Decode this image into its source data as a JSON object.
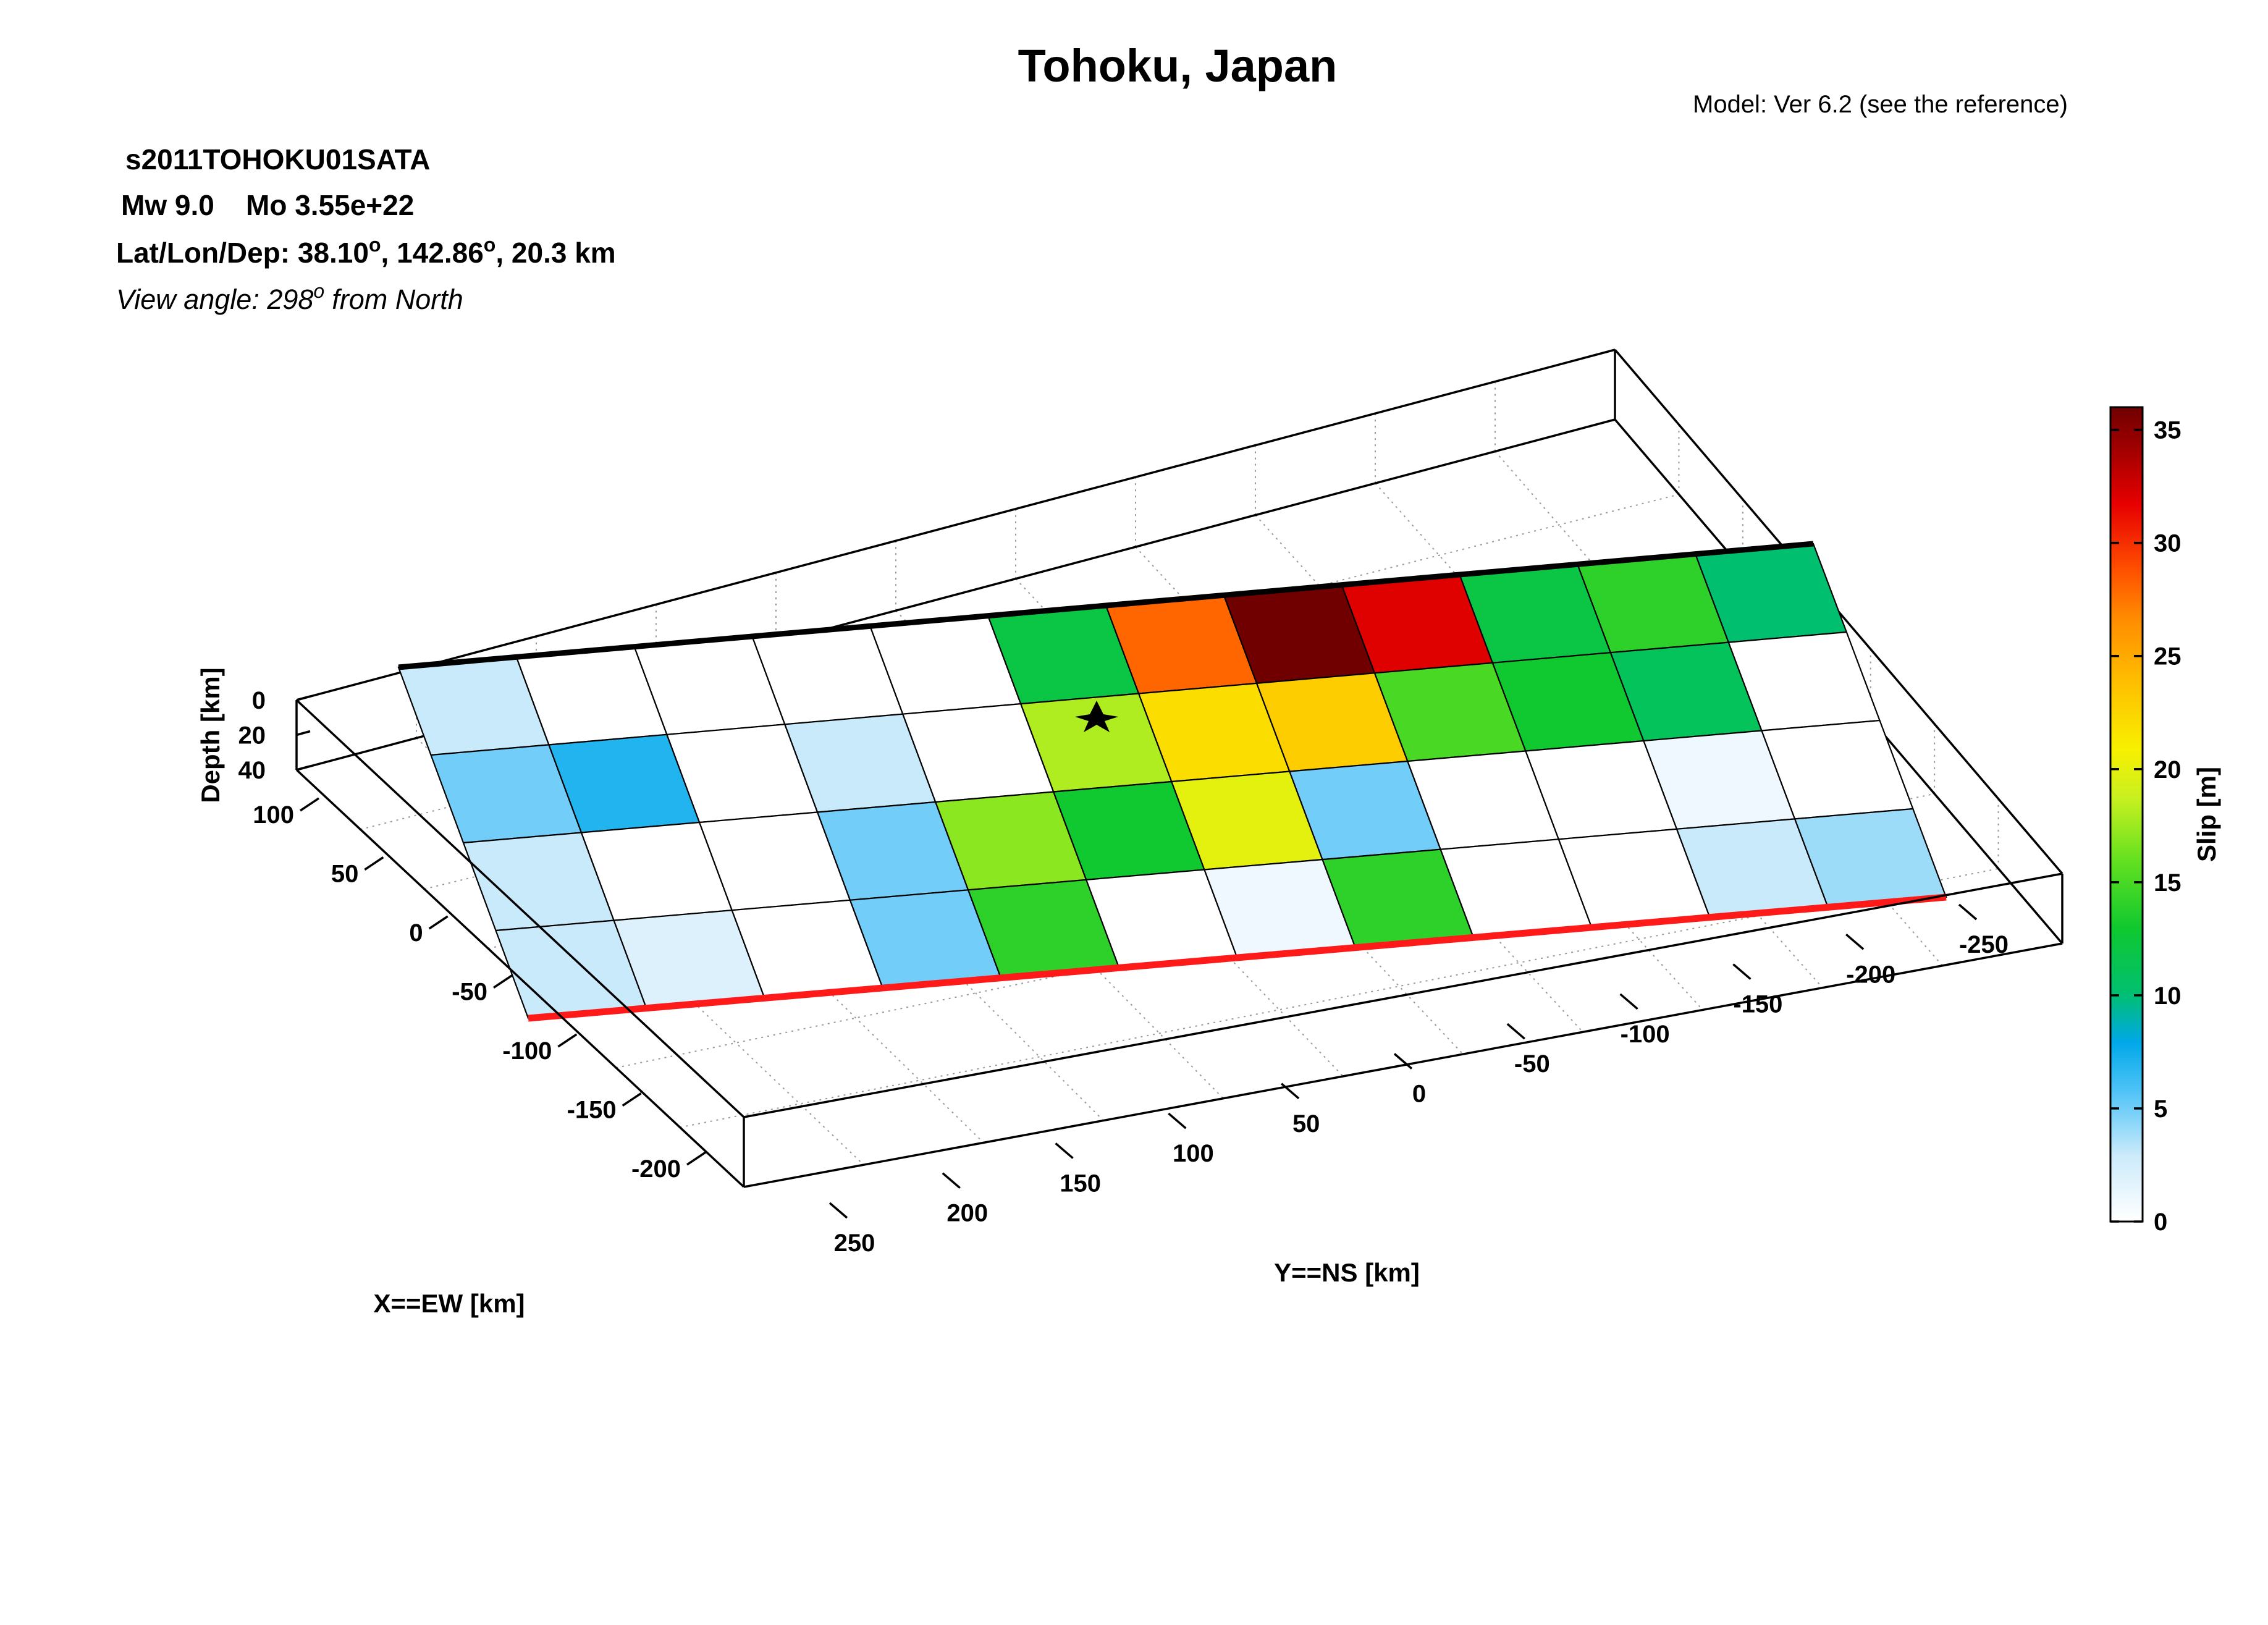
{
  "header": {
    "title": "Tohoku, Japan",
    "model_note": "Model: Ver 6.2 (see the reference)",
    "event_id": "s2011TOHOKU01SATA",
    "mw": "Mw 9.0",
    "mo": "Mo 3.55e+22",
    "location_label": "Lat/Lon/Dep: 38.10",
    "lat": "38.10",
    "lon": "142.86",
    "depth": "20.3 km",
    "degree_symbol": "o",
    "view_prefix": "View angle: 298",
    "view_suffix": "from North"
  },
  "chart_data": {
    "type": "heatmap",
    "title": "Tohoku, Japan",
    "xlabel": "X==EW [km]",
    "ylabel": "Y==NS [km]",
    "zlabel": "Depth [km]",
    "colorbar_label": "Slip [m]",
    "x_ticks": [
      "100",
      "50",
      "0",
      "-50",
      "-100",
      "-150",
      "-200"
    ],
    "y_ticks": [
      "250",
      "200",
      "150",
      "100",
      "50",
      "0",
      "-50",
      "-100",
      "-150",
      "-200",
      "-250"
    ],
    "z_ticks": [
      "0",
      "20",
      "40"
    ],
    "colorbar_ticks": [
      "35",
      "30",
      "25",
      "20",
      "15",
      "10",
      "5",
      "0"
    ],
    "colorbar_range": [
      0,
      36
    ],
    "colors": {
      "fault_top_edge": "#000000",
      "fault_bottom_edge": "#ff1a1a",
      "hypocenter": "#000000"
    },
    "grid": true,
    "view_angle_deg": 298,
    "hypocenter": {
      "lat": 38.1,
      "lon": 142.86,
      "depth_km": 20.3,
      "marker": "star"
    },
    "slip_grid_m": [
      [
        3,
        0,
        0,
        0,
        0,
        12,
        28,
        36,
        32,
        12,
        14,
        10
      ],
      [
        5,
        7,
        0,
        3,
        0,
        18,
        22,
        23,
        15,
        13,
        11,
        0
      ],
      [
        3,
        0,
        0,
        5,
        17,
        13,
        20,
        5,
        0,
        0,
        1,
        0
      ],
      [
        3,
        2,
        0,
        5,
        14,
        0,
        1,
        14,
        0,
        0,
        3,
        4
      ]
    ],
    "slip_grid_note_order": "rows top-to-bottom in depth, columns north(left of array) to south",
    "rows": [
      [
        3,
        0,
        0,
        0,
        0,
        12,
        28,
        36,
        32,
        12,
        14,
        10
      ],
      [
        5,
        7,
        0,
        3,
        0,
        18,
        22,
        23,
        15,
        13,
        11,
        0
      ],
      [
        3,
        0,
        0,
        5,
        17,
        13,
        20,
        5,
        0,
        0,
        1,
        0
      ],
      [
        3,
        2,
        0,
        5,
        14,
        0,
        1,
        14,
        0,
        0,
        3,
        4
      ]
    ]
  }
}
